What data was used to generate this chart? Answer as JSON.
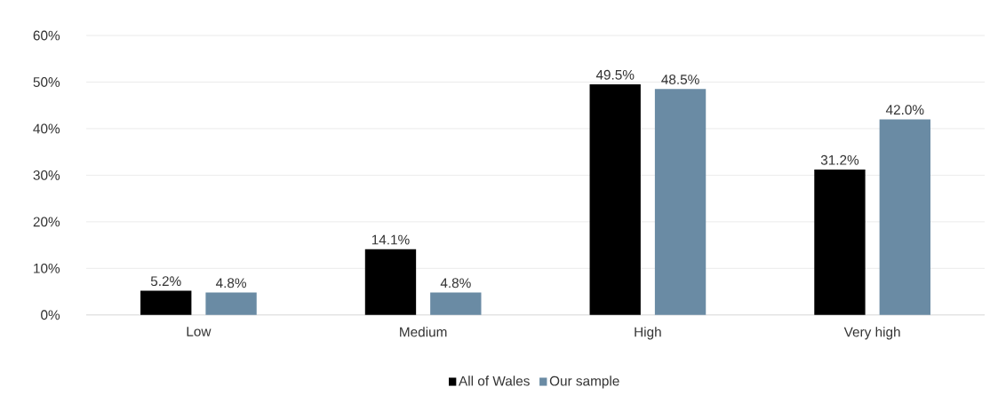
{
  "chart_data": {
    "type": "bar",
    "categories": [
      "Low",
      "Medium",
      "High",
      "Very high"
    ],
    "series": [
      {
        "name": "All of Wales",
        "color": "#000000",
        "values": [
          5.2,
          14.1,
          49.5,
          31.2
        ],
        "value_labels": [
          "5.2%",
          "14.1%",
          "49.5%",
          "31.2%"
        ]
      },
      {
        "name": "Our sample",
        "color": "#6a8ba4",
        "values": [
          4.8,
          4.8,
          48.5,
          42.0
        ],
        "value_labels": [
          "4.8%",
          "4.8%",
          "48.5%",
          "42.0%"
        ]
      }
    ],
    "ylim": [
      0,
      60
    ],
    "yticks": [
      {
        "value": 0,
        "label": "0%"
      },
      {
        "value": 10,
        "label": "10%"
      },
      {
        "value": 20,
        "label": "20%"
      },
      {
        "value": 30,
        "label": "30%"
      },
      {
        "value": 40,
        "label": "40%"
      },
      {
        "value": 50,
        "label": "50%"
      },
      {
        "value": 60,
        "label": "60%"
      }
    ],
    "grid": "y",
    "legend": "bottom"
  }
}
